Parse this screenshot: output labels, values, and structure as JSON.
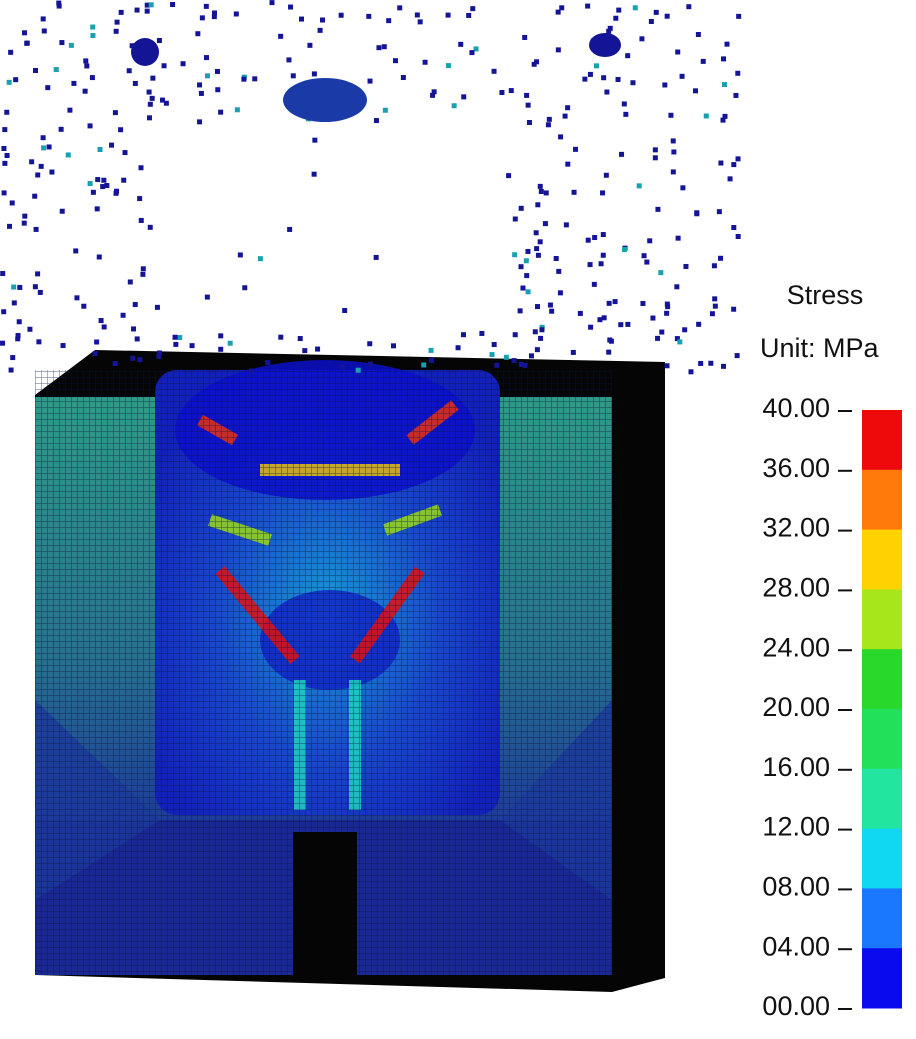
{
  "legend": {
    "title": "Stress",
    "unit": "Unit: MPa",
    "ticks": [
      "40.00",
      "36.00",
      "32.00",
      "28.00",
      "24.00",
      "20.00",
      "16.00",
      "12.00",
      "08.00",
      "04.00",
      "00.00"
    ],
    "band_colors": [
      "#ee0a0a",
      "#ff7a0a",
      "#ffd200",
      "#a8e61c",
      "#28d82a",
      "#22e05a",
      "#22e6a0",
      "#10d8f2",
      "#1a78ff",
      "#0a0aee"
    ]
  }
}
